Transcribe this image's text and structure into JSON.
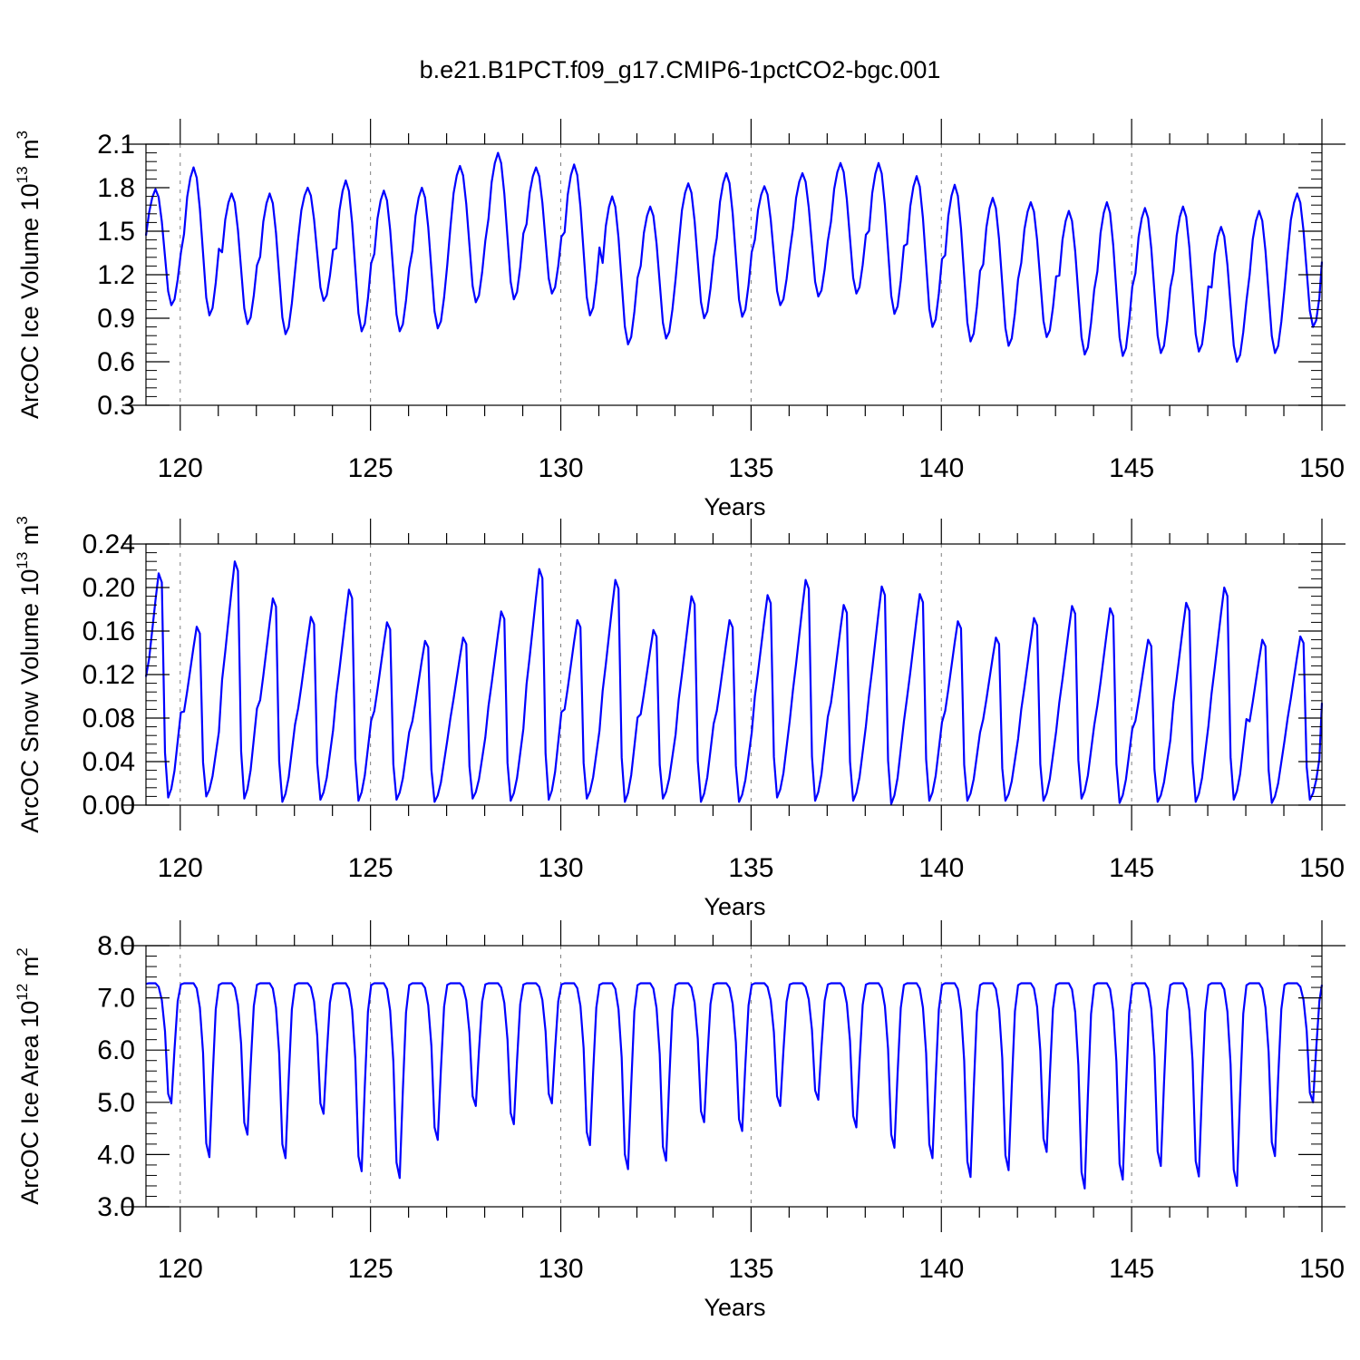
{
  "title": "b.e21.B1PCT.f09_g17.CMIP6-1pctCO2-bgc.001",
  "colors": {
    "series": "#0000ff",
    "axis": "#000000",
    "gridline": "#808080"
  },
  "chart_data": [
    {
      "type": "line",
      "title": "",
      "xlabel": "Years",
      "ylabel": {
        "base": "ArcOC Ice Volume 10",
        "exponent": "13",
        "unit": " m",
        "unit_exponent": "3"
      },
      "xlim": [
        119.1,
        150.0
      ],
      "ylim": [
        0.3,
        2.1
      ],
      "xticks": [
        120,
        125,
        130,
        135,
        140,
        145,
        150
      ],
      "yticks": [
        "0.3",
        "0.6",
        "0.9",
        "1.2",
        "1.5",
        "1.8",
        "2.1"
      ],
      "grid": "dashed vertical at major x ticks",
      "series": [
        {
          "name": "",
          "seasonal_cycle": "monthly",
          "annual_max": [
            1.79,
            1.94,
            1.76,
            1.76,
            1.8,
            1.85,
            1.78,
            1.8,
            1.95,
            2.04,
            1.94,
            1.96,
            1.74,
            1.67,
            1.83,
            1.9,
            1.81,
            1.9,
            1.97,
            1.97,
            1.88,
            1.82,
            1.73,
            1.7,
            1.64,
            1.7,
            1.66,
            1.67,
            1.53,
            1.64,
            1.76
          ],
          "annual_min": [
            0.99,
            0.92,
            0.86,
            0.79,
            1.02,
            0.81,
            0.81,
            0.83,
            1.01,
            1.03,
            1.07,
            0.92,
            0.72,
            0.76,
            0.9,
            0.91,
            0.99,
            1.05,
            1.07,
            0.93,
            0.84,
            0.74,
            0.71,
            0.77,
            0.65,
            0.64,
            0.66,
            0.67,
            0.6,
            0.66,
            0.84
          ],
          "start_value": 1.47,
          "end_value": 1.29
        }
      ]
    },
    {
      "type": "line",
      "title": "",
      "xlabel": "Years",
      "ylabel": {
        "base": "ArcOC Snow Volume 10",
        "exponent": "13",
        "unit": " m",
        "unit_exponent": "3"
      },
      "xlim": [
        119.1,
        150.0
      ],
      "ylim": [
        0.0,
        0.24
      ],
      "xticks": [
        120,
        125,
        130,
        135,
        140,
        145,
        150
      ],
      "yticks": [
        "0.00",
        "0.04",
        "0.08",
        "0.12",
        "0.16",
        "0.20",
        "0.24"
      ],
      "grid": "dashed vertical at major x ticks",
      "series": [
        {
          "name": "",
          "seasonal_cycle": "monthly",
          "annual_max": [
            0.213,
            0.164,
            0.224,
            0.19,
            0.173,
            0.198,
            0.168,
            0.151,
            0.154,
            0.178,
            0.217,
            0.17,
            0.207,
            0.161,
            0.192,
            0.17,
            0.193,
            0.207,
            0.184,
            0.201,
            0.194,
            0.169,
            0.154,
            0.172,
            0.183,
            0.181,
            0.152,
            0.186,
            0.2,
            0.152,
            0.155
          ],
          "annual_min": [
            0.007,
            0.008,
            0.006,
            0.003,
            0.005,
            0.004,
            0.005,
            0.003,
            0.006,
            0.004,
            0.005,
            0.006,
            0.003,
            0.006,
            0.003,
            0.003,
            0.007,
            0.004,
            0.004,
            0.001,
            0.004,
            0.004,
            0.004,
            0.004,
            0.006,
            0.002,
            0.003,
            0.003,
            0.005,
            0.002,
            0.005
          ],
          "start_value": 0.118,
          "end_value": 0.094
        }
      ]
    },
    {
      "type": "line",
      "title": "",
      "xlabel": "Years",
      "ylabel": {
        "base": "ArcOC Ice Area 10",
        "exponent": "12",
        "unit": " m",
        "unit_exponent": "2"
      },
      "xlim": [
        119.1,
        150.0
      ],
      "ylim": [
        3.0,
        8.0
      ],
      "xticks": [
        120,
        125,
        130,
        135,
        140,
        145,
        150
      ],
      "yticks": [
        "3.0",
        "4.0",
        "5.0",
        "6.0",
        "7.0",
        "8.0"
      ],
      "grid": "dashed vertical at major x ticks",
      "series": [
        {
          "name": "",
          "seasonal_cycle": "monthly",
          "annual_max": [
            7.28,
            7.28,
            7.28,
            7.28,
            7.28,
            7.28,
            7.28,
            7.28,
            7.28,
            7.28,
            7.28,
            7.28,
            7.28,
            7.28,
            7.28,
            7.28,
            7.28,
            7.28,
            7.28,
            7.28,
            7.28,
            7.28,
            7.28,
            7.28,
            7.28,
            7.28,
            7.28,
            7.28,
            7.28,
            7.28,
            7.28
          ],
          "annual_min": [
            4.98,
            3.95,
            4.38,
            3.93,
            4.78,
            3.68,
            3.55,
            4.28,
            4.93,
            4.58,
            4.98,
            4.18,
            3.72,
            3.88,
            4.62,
            4.45,
            4.93,
            5.05,
            4.52,
            4.13,
            3.93,
            3.57,
            3.7,
            4.05,
            3.35,
            3.52,
            3.78,
            3.58,
            3.4,
            3.97,
            5.0
          ],
          "start_value": 7.27,
          "end_value": 7.25
        }
      ]
    }
  ]
}
